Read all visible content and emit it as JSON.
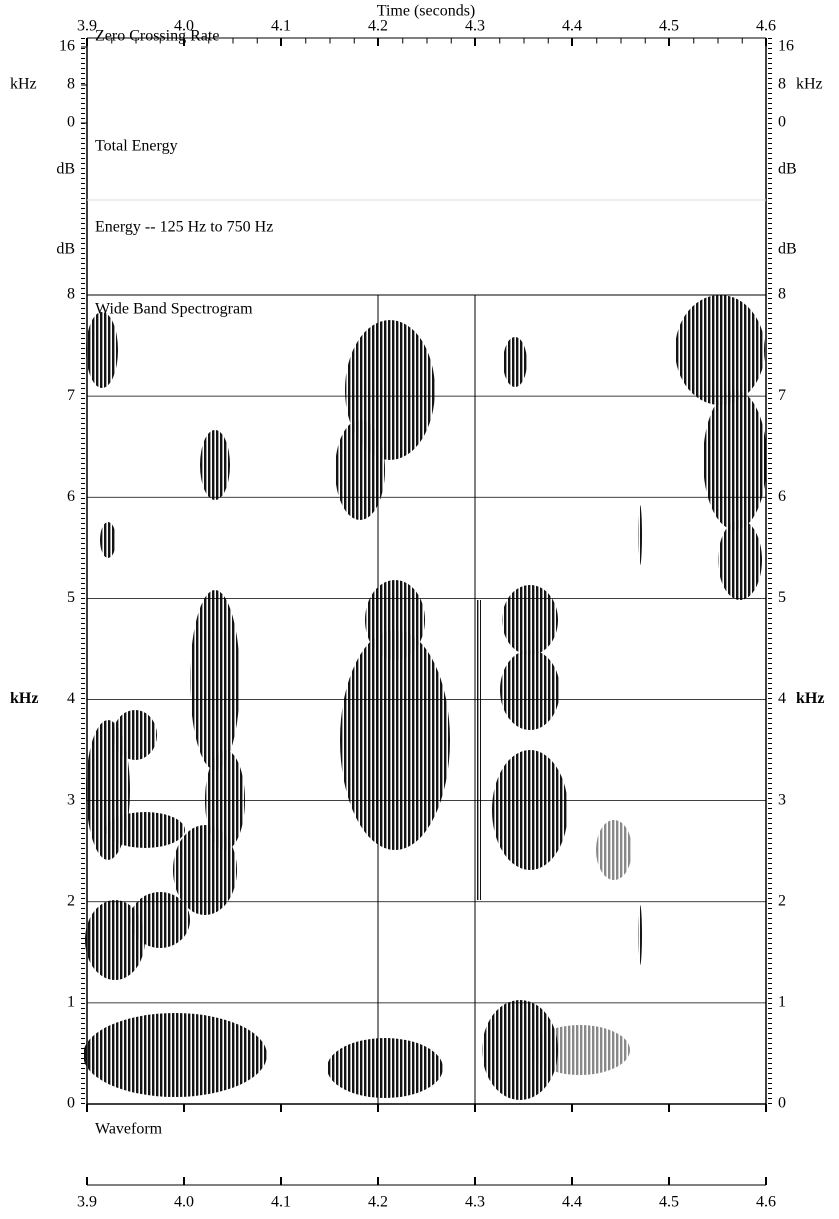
{
  "chart_data": {
    "type": "spectrogram",
    "x_label": "Time (seconds)",
    "xlim": [
      3.9,
      4.6
    ],
    "xticks": [
      3.9,
      {
        "value": 4.0,
        "label": "4.0"
      },
      4.1,
      4.2,
      4.3,
      4.4,
      4.5,
      4.6
    ],
    "panels": [
      {
        "title": "Zero Crossing Rate",
        "unit": "kHz",
        "ylim": [
          0,
          16
        ],
        "yticks": [
          0,
          8,
          16
        ]
      },
      {
        "title": "Total Energy",
        "unit": "dB"
      },
      {
        "title": "Energy -- 125 Hz to 750 Hz",
        "unit": "dB"
      },
      {
        "title": "Wide Band Spectrogram",
        "unit": "kHz",
        "ylim": [
          0,
          8
        ],
        "yticks": [
          0,
          1,
          2,
          3,
          4,
          5,
          6,
          7,
          8
        ],
        "grid": true,
        "cursors": [
          4.2,
          4.3
        ]
      },
      {
        "title": "Waveform"
      }
    ]
  }
}
